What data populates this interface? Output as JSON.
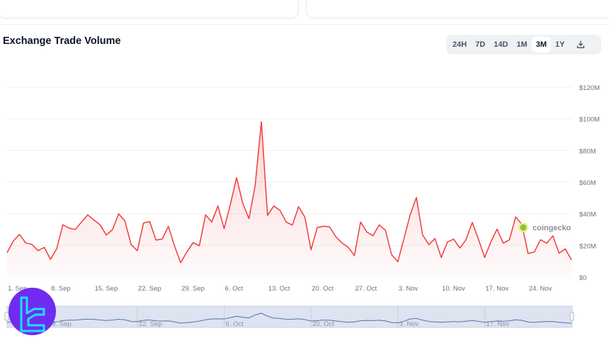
{
  "header": {
    "title": "Exchange Trade Volume"
  },
  "ranges": {
    "items": [
      "24H",
      "7D",
      "14D",
      "1M",
      "3M",
      "1Y"
    ],
    "active": "3M",
    "download_icon": "download-icon"
  },
  "watermark": {
    "text": "coingecko"
  },
  "colors": {
    "line": "#f23c3c",
    "navigator_bg": "#dde3f1",
    "navigator_line": "#5b6fa8",
    "logo": "#6f2cf0",
    "logo_accent": "#19e3ff"
  },
  "chart_data": {
    "type": "area",
    "title": "Exchange Trade Volume",
    "xlabel": "",
    "ylabel": "",
    "ylim": [
      0,
      120
    ],
    "y_unit": "M USD",
    "yticks": [
      "$0",
      "$20M",
      "$40M",
      "$60M",
      "$80M",
      "$100M",
      "$120M"
    ],
    "xticks": [
      "1. Sep",
      "8. Sep",
      "15. Sep",
      "22. Sep",
      "29. Sep",
      "6. Oct",
      "13. Oct",
      "20. Oct",
      "27. Oct",
      "3. Nov",
      "10. Nov",
      "17. Nov",
      "24. Nov"
    ],
    "navigator_ticks": [
      "8. Sep",
      "22. Sep",
      "6. Oct",
      "20. Oct",
      "3. Nov",
      "17. Nov"
    ],
    "grid": true,
    "x": [
      "1 Sep",
      "2 Sep",
      "3 Sep",
      "4 Sep",
      "5 Sep",
      "6 Sep",
      "7 Sep",
      "8 Sep",
      "9 Sep",
      "10 Sep",
      "11 Sep",
      "12 Sep",
      "13 Sep",
      "14 Sep",
      "15 Sep",
      "16 Sep",
      "17 Sep",
      "18 Sep",
      "19 Sep",
      "20 Sep",
      "21 Sep",
      "22 Sep",
      "23 Sep",
      "24 Sep",
      "25 Sep",
      "26 Sep",
      "27 Sep",
      "28 Sep",
      "29 Sep",
      "30 Sep",
      "1 Oct",
      "2 Oct",
      "3 Oct",
      "4 Oct",
      "5 Oct",
      "6 Oct",
      "7 Oct",
      "8 Oct",
      "9 Oct",
      "10 Oct",
      "11 Oct",
      "12 Oct",
      "13 Oct",
      "14 Oct",
      "15 Oct",
      "16 Oct",
      "17 Oct",
      "18 Oct",
      "19 Oct",
      "20 Oct",
      "21 Oct",
      "22 Oct",
      "23 Oct",
      "24 Oct",
      "25 Oct",
      "26 Oct",
      "27 Oct",
      "28 Oct",
      "29 Oct",
      "30 Oct",
      "31 Oct",
      "1 Nov",
      "2 Nov",
      "3 Nov",
      "4 Nov",
      "5 Nov",
      "6 Nov",
      "7 Nov",
      "8 Nov",
      "9 Nov",
      "10 Nov",
      "11 Nov",
      "12 Nov",
      "13 Nov",
      "14 Nov",
      "15 Nov",
      "16 Nov",
      "17 Nov",
      "18 Nov",
      "19 Nov",
      "20 Nov",
      "21 Nov",
      "22 Nov",
      "23 Nov",
      "24 Nov",
      "25 Nov",
      "26 Nov",
      "27 Nov",
      "28 Nov",
      "29 Nov",
      "30 Nov",
      "1 Dec"
    ],
    "values": [
      15.4,
      22.8,
      27,
      21.6,
      20.7,
      16.7,
      18.8,
      11.2,
      17.9,
      33.1,
      30.9,
      30.1,
      34.8,
      39.3,
      36.1,
      33,
      26.6,
      30,
      40,
      35.4,
      20.5,
      16.7,
      34.2,
      35.1,
      23.4,
      24,
      32.1,
      19.6,
      9.1,
      16,
      21.8,
      19.8,
      39.3,
      34.8,
      44.9,
      30.6,
      46,
      62.8,
      46.7,
      36.9,
      57.9,
      98.2,
      39,
      44.9,
      42.2,
      34.8,
      32.8,
      44.5,
      38,
      17.2,
      31.3,
      32.1,
      31.8,
      25.5,
      21.6,
      18.8,
      13.6,
      34.8,
      28.5,
      26.1,
      33,
      29.6,
      14.2,
      9.7,
      24.3,
      39.5,
      50.3,
      26.6,
      20.5,
      24.3,
      12.4,
      22.1,
      24,
      18.4,
      23.6,
      34.5,
      24,
      12.4,
      22.1,
      30.3,
      21.4,
      23.6,
      38,
      33.3,
      14.9,
      15.8,
      23.6,
      21.4,
      26.1,
      15.1,
      17.8,
      10.9
    ]
  }
}
